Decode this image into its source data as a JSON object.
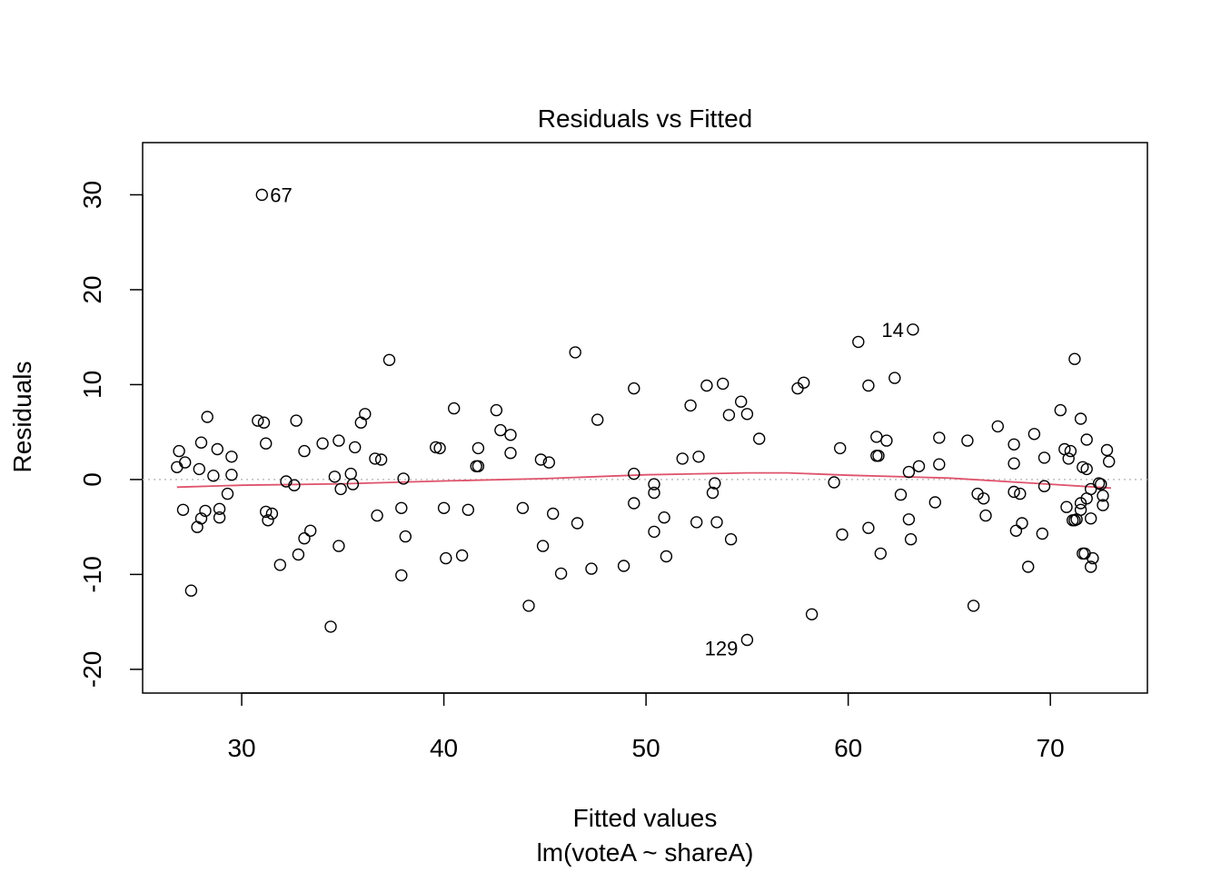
{
  "chart_data": {
    "type": "scatter",
    "title": "Residuals vs Fitted",
    "xlabel": "Fitted values",
    "subtitle": "lm(voteA ~ shareA)",
    "ylabel": "Residuals",
    "xlim": [
      25.1,
      74.8
    ],
    "ylim": [
      -22.5,
      35.5
    ],
    "xticks": [
      30,
      40,
      50,
      60,
      70
    ],
    "yticks": [
      -20,
      -10,
      0,
      10,
      20,
      30
    ],
    "grid": false,
    "reference_line_y": 0,
    "colors": {
      "points": "#000000",
      "smooth": "#DF536B",
      "reference": "#BEBEBE"
    },
    "labeled_points": [
      {
        "label": "67",
        "x": 31.0,
        "y": 30.0
      },
      {
        "label": "14",
        "x": 63.2,
        "y": 15.8
      },
      {
        "label": "129",
        "x": 55.0,
        "y": -16.9
      }
    ],
    "smooth_line": [
      [
        26.8,
        -0.8
      ],
      [
        30,
        -0.6
      ],
      [
        35,
        -0.45
      ],
      [
        40,
        -0.15
      ],
      [
        45,
        0.1
      ],
      [
        50,
        0.5
      ],
      [
        55,
        0.7
      ],
      [
        57,
        0.7
      ],
      [
        60,
        0.45
      ],
      [
        65,
        0.15
      ],
      [
        70,
        -0.5
      ],
      [
        73,
        -0.9
      ]
    ],
    "points": [
      [
        26.8,
        1.3
      ],
      [
        26.9,
        3.0
      ],
      [
        27.2,
        1.8
      ],
      [
        27.1,
        -3.2
      ],
      [
        27.5,
        -11.7
      ],
      [
        27.8,
        -5.0
      ],
      [
        27.9,
        1.1
      ],
      [
        28.0,
        3.9
      ],
      [
        28.0,
        -4.1
      ],
      [
        28.2,
        -3.3
      ],
      [
        28.3,
        6.6
      ],
      [
        28.6,
        0.4
      ],
      [
        28.8,
        3.2
      ],
      [
        28.9,
        -3.1
      ],
      [
        28.9,
        -4.0
      ],
      [
        29.3,
        -1.5
      ],
      [
        29.5,
        0.5
      ],
      [
        29.5,
        2.4
      ],
      [
        30.8,
        6.2
      ],
      [
        31.1,
        6.0
      ],
      [
        31.2,
        3.8
      ],
      [
        31.2,
        -3.4
      ],
      [
        31.3,
        -4.3
      ],
      [
        31.5,
        -3.6
      ],
      [
        31.9,
        -9.0
      ],
      [
        32.2,
        -0.2
      ],
      [
        32.6,
        -0.6
      ],
      [
        32.7,
        6.2
      ],
      [
        32.8,
        -7.9
      ],
      [
        33.1,
        3.0
      ],
      [
        33.1,
        -6.2
      ],
      [
        33.4,
        -5.4
      ],
      [
        34.0,
        3.8
      ],
      [
        34.4,
        -15.5
      ],
      [
        34.6,
        0.3
      ],
      [
        34.8,
        4.1
      ],
      [
        34.8,
        -7.0
      ],
      [
        34.9,
        -1.0
      ],
      [
        35.4,
        0.6
      ],
      [
        35.5,
        -0.5
      ],
      [
        35.6,
        3.4
      ],
      [
        35.9,
        6.0
      ],
      [
        36.1,
        6.9
      ],
      [
        36.6,
        2.2
      ],
      [
        36.7,
        -3.8
      ],
      [
        36.9,
        2.1
      ],
      [
        37.3,
        12.6
      ],
      [
        37.9,
        -10.1
      ],
      [
        37.9,
        -3.0
      ],
      [
        38.0,
        0.1
      ],
      [
        38.1,
        -6.0
      ],
      [
        39.6,
        3.4
      ],
      [
        39.8,
        3.3
      ],
      [
        40.0,
        -3.0
      ],
      [
        40.1,
        -8.3
      ],
      [
        40.5,
        7.5
      ],
      [
        40.9,
        -8.0
      ],
      [
        41.2,
        -3.2
      ],
      [
        41.6,
        1.4
      ],
      [
        41.7,
        1.4
      ],
      [
        41.7,
        3.3
      ],
      [
        42.6,
        7.3
      ],
      [
        42.8,
        5.2
      ],
      [
        43.3,
        4.7
      ],
      [
        43.3,
        2.8
      ],
      [
        43.9,
        -3.0
      ],
      [
        44.2,
        -13.3
      ],
      [
        44.8,
        2.1
      ],
      [
        44.9,
        -7.0
      ],
      [
        45.2,
        1.8
      ],
      [
        45.4,
        -3.6
      ],
      [
        45.8,
        -9.9
      ],
      [
        46.5,
        13.4
      ],
      [
        46.6,
        -4.6
      ],
      [
        47.3,
        -9.4
      ],
      [
        47.6,
        6.3
      ],
      [
        48.9,
        -9.1
      ],
      [
        49.4,
        9.6
      ],
      [
        49.4,
        0.6
      ],
      [
        49.4,
        -2.5
      ],
      [
        50.4,
        -0.5
      ],
      [
        50.4,
        -1.4
      ],
      [
        50.4,
        -5.5
      ],
      [
        50.9,
        -4.0
      ],
      [
        51.0,
        -8.1
      ],
      [
        51.8,
        2.2
      ],
      [
        52.2,
        7.8
      ],
      [
        52.5,
        -4.5
      ],
      [
        52.6,
        2.4
      ],
      [
        53.0,
        9.9
      ],
      [
        53.3,
        -1.4
      ],
      [
        53.4,
        -0.4
      ],
      [
        53.5,
        -4.5
      ],
      [
        53.8,
        10.1
      ],
      [
        54.1,
        6.8
      ],
      [
        54.2,
        -6.3
      ],
      [
        54.7,
        8.2
      ],
      [
        55.0,
        6.9
      ],
      [
        55.6,
        4.3
      ],
      [
        57.5,
        9.6
      ],
      [
        57.8,
        10.2
      ],
      [
        58.2,
        -14.2
      ],
      [
        59.3,
        -0.3
      ],
      [
        59.6,
        3.3
      ],
      [
        59.7,
        -5.8
      ],
      [
        60.5,
        14.5
      ],
      [
        61.0,
        9.9
      ],
      [
        61.0,
        -5.1
      ],
      [
        61.4,
        4.5
      ],
      [
        61.4,
        2.5
      ],
      [
        61.5,
        2.5
      ],
      [
        61.6,
        -7.8
      ],
      [
        61.9,
        4.1
      ],
      [
        62.3,
        10.7
      ],
      [
        62.6,
        -1.6
      ],
      [
        63.0,
        -4.2
      ],
      [
        63.0,
        0.8
      ],
      [
        63.1,
        -6.3
      ],
      [
        63.5,
        1.4
      ],
      [
        64.3,
        -2.4
      ],
      [
        64.5,
        1.6
      ],
      [
        64.5,
        4.4
      ],
      [
        65.9,
        4.1
      ],
      [
        66.2,
        -13.3
      ],
      [
        66.4,
        -1.5
      ],
      [
        66.7,
        -2.0
      ],
      [
        66.8,
        -3.8
      ],
      [
        67.4,
        5.6
      ],
      [
        68.2,
        1.7
      ],
      [
        68.2,
        3.7
      ],
      [
        68.2,
        -1.3
      ],
      [
        68.3,
        -5.4
      ],
      [
        68.5,
        -1.5
      ],
      [
        68.6,
        -4.6
      ],
      [
        68.9,
        -9.2
      ],
      [
        69.2,
        4.8
      ],
      [
        69.6,
        -5.7
      ],
      [
        69.7,
        -0.7
      ],
      [
        69.7,
        2.3
      ],
      [
        70.5,
        7.3
      ],
      [
        70.7,
        3.2
      ],
      [
        70.8,
        -2.9
      ],
      [
        70.9,
        2.2
      ],
      [
        71.0,
        3.0
      ],
      [
        71.1,
        -4.3
      ],
      [
        71.2,
        12.7
      ],
      [
        71.2,
        -4.3
      ],
      [
        71.3,
        -4.2
      ],
      [
        71.5,
        -2.5
      ],
      [
        71.5,
        -3.2
      ],
      [
        71.5,
        6.4
      ],
      [
        71.6,
        1.3
      ],
      [
        71.6,
        -7.8
      ],
      [
        71.7,
        -7.8
      ],
      [
        71.8,
        4.2
      ],
      [
        71.8,
        1.1
      ],
      [
        71.8,
        -2.0
      ],
      [
        72.0,
        -1.0
      ],
      [
        72.0,
        -4.1
      ],
      [
        72.0,
        -9.2
      ],
      [
        72.1,
        -8.3
      ],
      [
        72.4,
        -0.4
      ],
      [
        72.5,
        -0.5
      ],
      [
        72.6,
        -1.7
      ],
      [
        72.6,
        -2.7
      ],
      [
        72.8,
        3.1
      ],
      [
        72.9,
        1.9
      ]
    ]
  }
}
